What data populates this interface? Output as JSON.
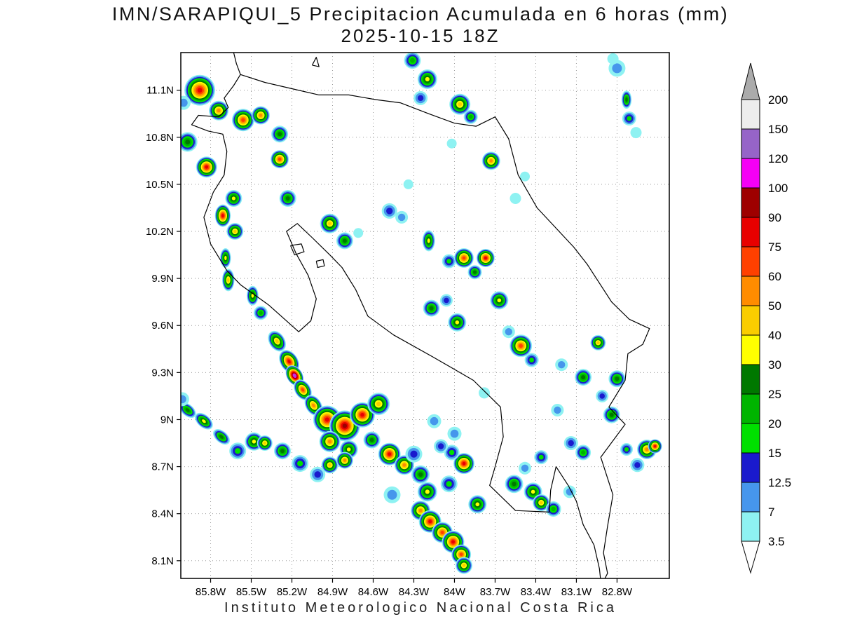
{
  "title": {
    "line1": "IMN/SARAPIQUI_5 Precipitacion Acumulada en 6 horas (mm)",
    "line2": "2025-10-15 18Z"
  },
  "footer": "Instituto Meteorologico Nacional Costa Rica",
  "axes": {
    "lat_ticks": [
      "11.1N",
      "10.8N",
      "10.5N",
      "10.2N",
      "9.9N",
      "9.6N",
      "9.3N",
      "9N",
      "8.7N",
      "8.4N",
      "8.1N"
    ],
    "lat_values": [
      11.1,
      10.8,
      10.5,
      10.2,
      9.9,
      9.6,
      9.3,
      9.0,
      8.7,
      8.4,
      8.1
    ],
    "lon_ticks": [
      "85.8W",
      "85.5W",
      "85.2W",
      "84.9W",
      "84.6W",
      "84.3W",
      "84W",
      "83.7W",
      "83.4W",
      "83.1W",
      "82.8W"
    ],
    "lon_values": [
      85.8,
      85.5,
      85.2,
      84.9,
      84.6,
      84.3,
      84.0,
      83.7,
      83.4,
      83.1,
      82.8
    ]
  },
  "chart_data": {
    "type": "heatmap",
    "variable": "Precipitacion Acumulada en 6 horas",
    "units": "mm",
    "valid_time": "2025-10-15 18Z",
    "region": {
      "lon_west": 86.02,
      "lon_east": 82.41,
      "lat_south": 7.99,
      "lat_north": 11.34
    },
    "scale": {
      "levels": [
        3.5,
        7,
        12.5,
        15,
        20,
        25,
        30,
        40,
        50,
        60,
        75,
        90,
        100,
        120,
        150,
        200
      ],
      "labels": [
        "3.5",
        "7",
        "12.5",
        "15",
        "20",
        "25",
        "30",
        "40",
        "50",
        "60",
        "75",
        "90",
        "100",
        "120",
        "150",
        "200"
      ],
      "colors": [
        "#8EF2F2",
        "#4696EC",
        "#1A1ACD",
        "#00E000",
        "#00B400",
        "#007800",
        "#FFFF00",
        "#FACD00",
        "#FF8C00",
        "#FF4000",
        "#E80000",
        "#9E0000",
        "#F500F5",
        "#9664C8",
        "#EDEDED"
      ],
      "over_color": "#ABABAB",
      "under_color": "#FFFFFF"
    },
    "cells": [
      [
        85.88,
        11.1,
        75,
        0.11
      ],
      [
        86.0,
        11.02,
        7,
        0.05
      ],
      [
        85.74,
        10.97,
        50,
        0.07
      ],
      [
        85.56,
        10.91,
        60,
        0.08
      ],
      [
        85.43,
        10.94,
        50,
        0.065
      ],
      [
        85.29,
        10.82,
        25,
        0.06
      ],
      [
        85.97,
        10.77,
        25,
        0.07
      ],
      [
        85.83,
        10.61,
        75,
        0.075
      ],
      [
        85.63,
        10.41,
        30,
        0.06
      ],
      [
        85.71,
        10.3,
        75,
        0.08,
        90,
        0.7
      ],
      [
        85.62,
        10.2,
        40,
        0.06
      ],
      [
        85.69,
        10.03,
        30,
        0.07,
        90,
        0.55
      ],
      [
        85.67,
        9.89,
        40,
        0.08,
        90,
        0.55
      ],
      [
        85.49,
        9.79,
        30,
        0.07,
        90,
        0.6
      ],
      [
        85.43,
        9.68,
        20,
        0.05
      ],
      [
        84.31,
        11.29,
        20,
        0.06
      ],
      [
        84.2,
        11.17,
        30,
        0.07
      ],
      [
        84.25,
        11.05,
        12.5,
        0.05
      ],
      [
        83.96,
        11.01,
        40,
        0.075
      ],
      [
        83.88,
        10.93,
        20,
        0.05
      ],
      [
        83.73,
        10.65,
        50,
        0.065
      ],
      [
        85.29,
        10.66,
        60,
        0.065
      ],
      [
        85.23,
        10.41,
        25,
        0.06
      ],
      [
        84.92,
        10.25,
        40,
        0.07
      ],
      [
        84.81,
        10.14,
        25,
        0.06
      ],
      [
        84.48,
        10.33,
        12.5,
        0.055
      ],
      [
        84.39,
        10.29,
        7,
        0.045
      ],
      [
        84.19,
        10.14,
        30,
        0.075,
        90,
        0.6
      ],
      [
        84.04,
        10.01,
        15,
        0.05
      ],
      [
        83.93,
        10.03,
        60,
        0.07
      ],
      [
        83.77,
        10.03,
        75,
        0.065
      ],
      [
        83.85,
        9.94,
        25,
        0.05
      ],
      [
        84.17,
        9.71,
        25,
        0.06
      ],
      [
        83.98,
        9.62,
        30,
        0.065
      ],
      [
        84.06,
        9.76,
        12.5,
        0.045
      ],
      [
        83.67,
        9.76,
        30,
        0.065
      ],
      [
        83.51,
        9.47,
        60,
        0.08
      ],
      [
        83.43,
        9.38,
        15,
        0.05
      ],
      [
        83.21,
        9.35,
        7,
        0.045
      ],
      [
        83.05,
        9.27,
        25,
        0.06
      ],
      [
        82.94,
        9.49,
        40,
        0.055
      ],
      [
        82.8,
        9.26,
        25,
        0.06
      ],
      [
        82.91,
        9.15,
        12.5,
        0.045
      ],
      [
        82.84,
        9.03,
        25,
        0.06
      ],
      [
        82.58,
        8.81,
        50,
        0.07
      ],
      [
        82.52,
        8.83,
        75,
        0.05
      ],
      [
        82.65,
        8.71,
        12.5,
        0.05
      ],
      [
        82.73,
        8.81,
        15,
        0.045
      ],
      [
        85.31,
        9.5,
        40,
        0.08,
        57,
        0.7
      ],
      [
        85.22,
        9.37,
        75,
        0.09,
        57,
        0.7
      ],
      [
        85.18,
        9.28,
        120,
        0.08,
        57,
        0.7
      ],
      [
        85.12,
        9.19,
        60,
        0.08,
        57,
        0.7
      ],
      [
        85.04,
        9.09,
        50,
        0.08,
        57,
        0.7
      ],
      [
        84.94,
        9.0,
        75,
        0.1
      ],
      [
        84.81,
        8.96,
        90,
        0.11
      ],
      [
        84.68,
        9.03,
        75,
        0.09
      ],
      [
        84.56,
        9.1,
        40,
        0.08
      ],
      [
        84.92,
        8.86,
        50,
        0.075
      ],
      [
        84.78,
        8.81,
        30,
        0.065
      ],
      [
        84.61,
        8.87,
        25,
        0.06
      ],
      [
        84.48,
        8.78,
        75,
        0.08
      ],
      [
        84.37,
        8.71,
        50,
        0.07
      ],
      [
        84.25,
        8.65,
        25,
        0.065
      ],
      [
        84.2,
        8.54,
        30,
        0.07
      ],
      [
        84.25,
        8.42,
        50,
        0.07
      ],
      [
        84.18,
        8.35,
        75,
        0.08
      ],
      [
        84.09,
        8.28,
        60,
        0.075
      ],
      [
        84.01,
        8.22,
        75,
        0.08
      ],
      [
        83.95,
        8.14,
        60,
        0.07
      ],
      [
        83.93,
        8.07,
        40,
        0.06
      ],
      [
        83.83,
        8.46,
        30,
        0.065
      ],
      [
        83.93,
        8.72,
        75,
        0.075
      ],
      [
        84.02,
        8.79,
        15,
        0.055
      ],
      [
        84.1,
        8.83,
        12.5,
        0.05
      ],
      [
        85.97,
        9.06,
        25,
        0.07,
        40,
        0.6
      ],
      [
        85.85,
        8.99,
        30,
        0.075,
        40,
        0.6
      ],
      [
        85.72,
        8.89,
        25,
        0.07,
        40,
        0.6
      ],
      [
        85.6,
        8.8,
        15,
        0.06
      ],
      [
        85.48,
        8.86,
        30,
        0.065
      ],
      [
        85.4,
        8.85,
        40,
        0.055
      ],
      [
        85.27,
        8.8,
        25,
        0.06
      ],
      [
        85.14,
        8.72,
        15,
        0.06
      ],
      [
        85.01,
        8.65,
        12.5,
        0.055
      ],
      [
        84.92,
        8.71,
        40,
        0.06
      ],
      [
        84.81,
        8.74,
        50,
        0.06
      ],
      [
        83.56,
        8.59,
        25,
        0.065
      ],
      [
        83.42,
        8.54,
        30,
        0.065
      ],
      [
        83.36,
        8.47,
        40,
        0.06
      ],
      [
        83.27,
        8.43,
        20,
        0.055
      ],
      [
        83.48,
        8.69,
        7,
        0.045
      ],
      [
        83.15,
        8.54,
        7,
        0.045
      ],
      [
        83.36,
        8.76,
        15,
        0.05
      ],
      [
        82.8,
        11.24,
        7,
        0.06
      ],
      [
        82.73,
        11.04,
        25,
        0.065,
        90,
        0.55
      ],
      [
        82.71,
        10.92,
        15,
        0.05
      ],
      [
        82.66,
        10.83,
        3.5,
        0.04
      ],
      [
        83.55,
        10.41,
        3.5,
        0.04
      ],
      [
        83.48,
        10.55,
        3.5,
        0.035
      ],
      [
        83.6,
        9.56,
        7,
        0.045
      ],
      [
        83.24,
        9.06,
        7,
        0.045
      ],
      [
        83.14,
        8.85,
        12.5,
        0.05
      ],
      [
        83.05,
        8.79,
        20,
        0.055
      ],
      [
        83.78,
        9.17,
        3.5,
        0.04
      ],
      [
        84.15,
        8.99,
        7,
        0.05
      ],
      [
        84.0,
        8.91,
        7,
        0.05
      ],
      [
        84.71,
        10.19,
        3.5,
        0.035
      ],
      [
        84.34,
        10.5,
        3.5,
        0.035
      ],
      [
        84.02,
        10.76,
        3.5,
        0.035
      ],
      [
        86.01,
        9.13,
        7,
        0.05
      ],
      [
        84.46,
        8.52,
        7,
        0.06
      ],
      [
        84.3,
        8.78,
        12.5,
        0.06
      ],
      [
        84.04,
        8.59,
        15,
        0.06
      ],
      [
        82.83,
        11.3,
        3.5,
        0.04
      ]
    ],
    "coastlines": [
      [
        [
          85.63,
          11.34
        ],
        [
          85.61,
          11.27
        ],
        [
          85.58,
          11.2
        ],
        [
          85.63,
          11.13
        ],
        [
          85.7,
          11.05
        ],
        [
          85.67,
          10.99
        ],
        [
          85.74,
          10.93
        ],
        [
          85.89,
          10.94
        ],
        [
          85.94,
          10.88
        ],
        [
          85.82,
          10.84
        ],
        [
          85.71,
          10.82
        ],
        [
          85.68,
          10.71
        ],
        [
          85.7,
          10.56
        ],
        [
          85.78,
          10.45
        ],
        [
          85.85,
          10.29
        ],
        [
          85.8,
          10.12
        ],
        [
          85.68,
          9.95
        ],
        [
          85.58,
          9.86
        ],
        [
          85.37,
          9.73
        ],
        [
          85.15,
          9.56
        ],
        [
          85.06,
          9.63
        ],
        [
          85.02,
          9.77
        ],
        [
          85.08,
          9.92
        ],
        [
          85.17,
          10.06
        ],
        [
          85.24,
          10.2
        ],
        [
          85.16,
          10.25
        ],
        [
          85.05,
          10.16
        ],
        [
          84.92,
          10.05
        ],
        [
          84.83,
          9.97
        ],
        [
          84.73,
          9.83
        ],
        [
          84.64,
          9.66
        ],
        [
          84.45,
          9.54
        ],
        [
          84.16,
          9.4
        ],
        [
          83.86,
          9.25
        ],
        [
          83.66,
          9.08
        ],
        [
          83.64,
          8.89
        ],
        [
          83.7,
          8.7
        ],
        [
          83.74,
          8.58
        ],
        [
          83.55,
          8.42
        ],
        [
          83.3,
          8.41
        ],
        [
          83.29,
          8.55
        ],
        [
          83.25,
          8.7
        ],
        [
          83.16,
          8.58
        ],
        [
          83.1,
          8.48
        ],
        [
          83.05,
          8.33
        ],
        [
          82.97,
          8.2
        ],
        [
          82.93,
          8.05
        ],
        [
          82.92,
          7.97
        ]
      ],
      [
        [
          85.58,
          11.2
        ],
        [
          85.4,
          11.15
        ],
        [
          85.2,
          11.11
        ],
        [
          85.0,
          11.07
        ],
        [
          84.78,
          11.07
        ],
        [
          84.58,
          11.04
        ],
        [
          84.4,
          11.02
        ],
        [
          84.19,
          10.95
        ],
        [
          84.0,
          10.89
        ],
        [
          83.84,
          10.87
        ],
        [
          83.7,
          10.93
        ],
        [
          83.6,
          10.79
        ],
        [
          83.53,
          10.56
        ],
        [
          83.39,
          10.35
        ],
        [
          83.12,
          10.1
        ],
        [
          83.02,
          9.99
        ],
        [
          82.84,
          9.75
        ],
        [
          82.71,
          9.64
        ],
        [
          82.56,
          9.58
        ],
        [
          82.61,
          9.48
        ],
        [
          82.72,
          9.42
        ],
        [
          82.74,
          9.25
        ],
        [
          82.86,
          9.08
        ],
        [
          82.74,
          8.97
        ],
        [
          82.92,
          8.76
        ],
        [
          82.83,
          8.52
        ],
        [
          82.87,
          8.32
        ],
        [
          82.9,
          8.15
        ],
        [
          82.87,
          8.02
        ],
        [
          82.9,
          7.97
        ]
      ],
      [
        [
          85.05,
          11.26
        ],
        [
          85.0,
          11.25
        ],
        [
          85.02,
          11.31
        ],
        [
          85.05,
          11.26
        ]
      ],
      [
        [
          85.21,
          10.11
        ],
        [
          85.13,
          10.12
        ],
        [
          85.11,
          10.07
        ],
        [
          85.18,
          10.05
        ],
        [
          85.21,
          10.11
        ]
      ],
      [
        [
          85.02,
          10.01
        ],
        [
          84.97,
          10.02
        ],
        [
          84.96,
          9.98
        ],
        [
          85.01,
          9.97
        ],
        [
          85.02,
          10.01
        ]
      ]
    ]
  }
}
